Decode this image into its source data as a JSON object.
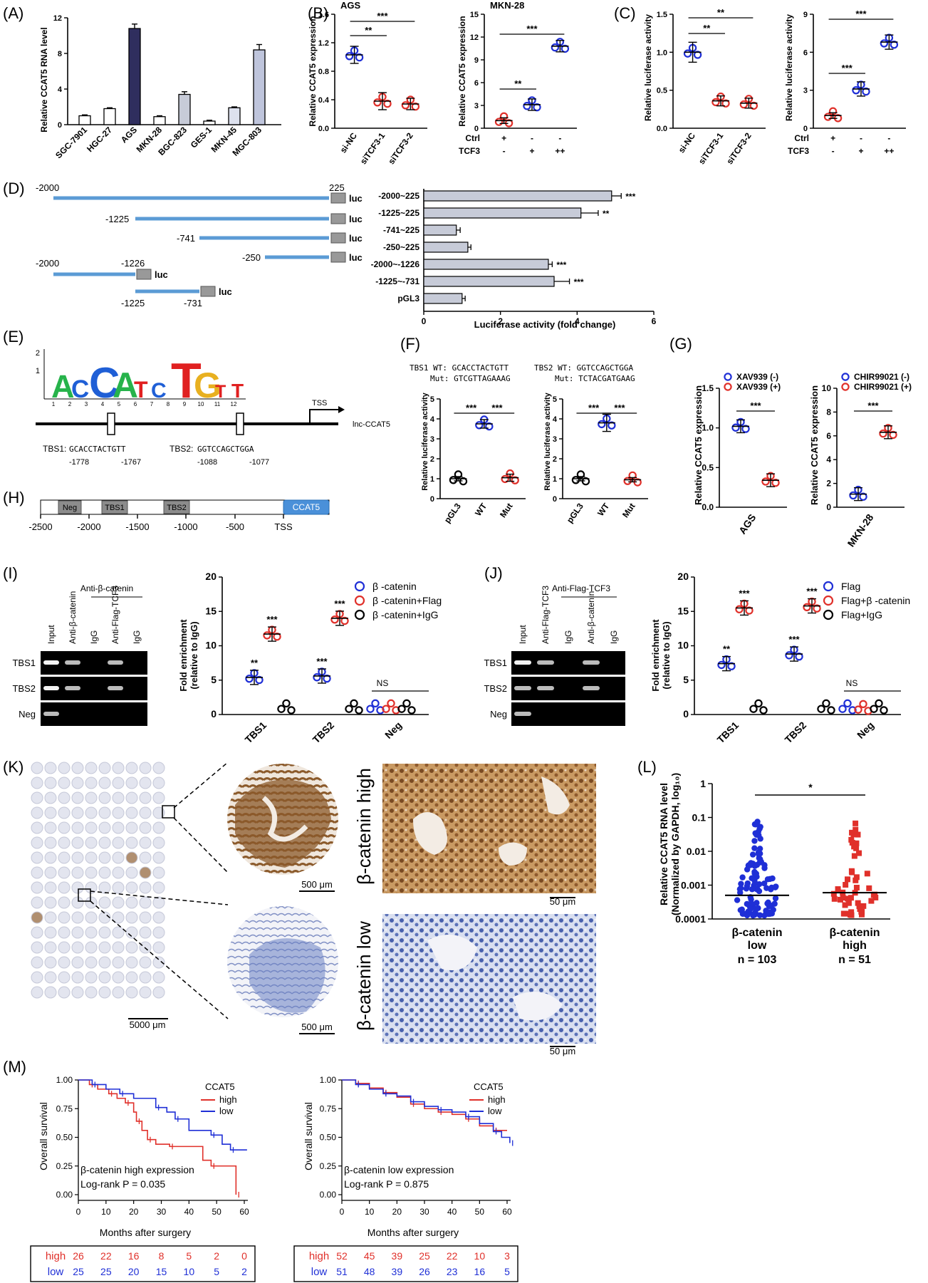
{
  "colors": {
    "blue": "#1f2fd6",
    "red": "#e0302a",
    "bar_gray": "#c7cbd8",
    "bar_dark": "#2f2e5e",
    "promoter_blue": "#5b9bd5",
    "ccat5_box": "#4a90d9",
    "ihc_brown": "#8b5a2b",
    "ihc_blue": "#3c5aa8"
  },
  "panels": {
    "A": {
      "label": "(A)",
      "ylabel": "Relative CCAT5 RNA level"
    },
    "B": {
      "label": "(B)",
      "ylabel": "Relative CCAT5 expression"
    },
    "C": {
      "label": "(C)",
      "ylabel": "Relative luciferase activity"
    },
    "D": {
      "label": "(D)",
      "xlabel": "Luciferase activity (fold change)",
      "luc": "luc"
    },
    "E": {
      "label": "(E)",
      "tss": "TSS",
      "gene": "lnc-CCAT5",
      "tbs1": "TBS1:",
      "tbs1_seq": "GCACCTACTGTT",
      "tbs1_start": "-1778",
      "tbs1_end": "-1767",
      "tbs2": "TBS2:",
      "tbs2_seq": "GGTCCAGCTGGA",
      "tbs2_start": "-1088",
      "tbs2_end": "-1077",
      "logo_letters": [
        "A",
        "C",
        "C",
        "A",
        "T",
        "C",
        "T",
        "G",
        "T",
        "T"
      ]
    },
    "F": {
      "label": "(F)",
      "ylabel": "Relative luciferase activity",
      "tbs1_wt": "TBS1 WT:  GCACCTACTGTT",
      "tbs1_mut": "Mut:  GTCGTTAGAAAG",
      "tbs2_wt": "TBS2 WT:  GGTCCAGCTGGA",
      "tbs2_mut": "Mut:  TCTACGATGAAG"
    },
    "G": {
      "label": "(G)",
      "ylabel": "Relative CCAT5 expression"
    },
    "H": {
      "label": "(H)",
      "boxes": [
        "Neg",
        "TBS1",
        "TBS2",
        "CCAT5"
      ],
      "ticks": [
        "-2500",
        "-2000",
        "-1500",
        "-1000",
        "-500",
        "TSS"
      ]
    },
    "I": {
      "label": "(I)",
      "header": "Anti-β-catenin",
      "lanes": [
        "Input",
        "Anti-β-catenin",
        "IgG",
        "Anti-Flag-TCF3",
        "IgG"
      ],
      "rows": [
        "TBS1",
        "TBS2",
        "Neg"
      ],
      "ylabel1": "Fold enrichment",
      "ylabel2": "(relative to IgG)",
      "ns": "NS"
    },
    "J": {
      "label": "(J)",
      "header": "Anti-Flag-TCF3",
      "lanes": [
        "Input",
        "Anti-Flag-TCF3",
        "IgG",
        "Anti-β-catenin",
        "IgG"
      ],
      "rows": [
        "TBS1",
        "TBS2",
        "Neg"
      ],
      "ylabel1": "Fold enrichment",
      "ylabel2": "(relative to IgG)",
      "ns": "NS"
    },
    "K": {
      "label": "(K)",
      "high": "β-catenin high",
      "low": "β-catenin low",
      "scale_5000": "5000 μm",
      "scale_500a": "500 μm",
      "scale_500b": "500 μm",
      "scale_50a": "50 μm",
      "scale_50b": "50 μm"
    },
    "L": {
      "label": "(L)",
      "ylabel1": "Relative CCAT5 RNA level",
      "ylabel2": "(Normalized by GAPDH, log₁₀)",
      "sig": "*"
    },
    "M": {
      "label": "(M)",
      "xlabel": "Months after surgery",
      "ylabel": "Overall survival"
    }
  },
  "chart_data": [
    {
      "id": "A",
      "type": "bar",
      "categories": [
        "SGC-7901",
        "HGC-27",
        "AGS",
        "MKN-28",
        "BGC-823",
        "GES-1",
        "MKN-45",
        "MGC-803"
      ],
      "values": [
        1.0,
        1.8,
        10.8,
        0.9,
        3.4,
        0.4,
        1.9,
        8.4
      ],
      "errors": [
        0.1,
        0.1,
        0.5,
        0.1,
        0.3,
        0.1,
        0.1,
        0.6
      ],
      "ylim": [
        0,
        12
      ],
      "yticks": [
        0,
        4,
        8,
        12
      ]
    },
    {
      "id": "B1",
      "type": "scatter",
      "title": "AGS",
      "categories": [
        "si-NC",
        "siTCF3-1",
        "siTCF3-2"
      ],
      "means": [
        1.03,
        0.38,
        0.34
      ],
      "ylim": [
        0,
        1.6
      ],
      "yticks": [
        "0.0",
        "0.4",
        "0.8",
        "1.2",
        "1.6"
      ],
      "sig": [
        {
          "from": 0,
          "to": 1,
          "text": "**"
        },
        {
          "from": 0,
          "to": 2,
          "text": "***"
        }
      ]
    },
    {
      "id": "B2",
      "type": "scatter",
      "title": "MKN-28",
      "categories": [
        "1",
        "2",
        "3"
      ],
      "means": [
        1.0,
        3.1,
        10.8
      ],
      "ylim": [
        0,
        15
      ],
      "yticks": [
        "0",
        "3",
        "6",
        "9",
        "12",
        "15"
      ],
      "conditions": {
        "Ctrl": [
          "+",
          "-",
          "-"
        ],
        "TCF3": [
          "-",
          "+",
          "++"
        ]
      },
      "sig": [
        {
          "from": 0,
          "to": 1,
          "text": "**"
        },
        {
          "from": 0,
          "to": 2,
          "text": "***"
        }
      ]
    },
    {
      "id": "C1",
      "type": "scatter",
      "categories": [
        "si-NC",
        "siTCF3-1",
        "siTCF3-2"
      ],
      "means": [
        1.0,
        0.36,
        0.33
      ],
      "ylim": [
        0,
        1.5
      ],
      "yticks": [
        "0.0",
        "0.5",
        "1.0",
        "1.5"
      ],
      "sig": [
        {
          "from": 0,
          "to": 1,
          "text": "**"
        },
        {
          "from": 0,
          "to": 2,
          "text": "**"
        }
      ]
    },
    {
      "id": "C2",
      "type": "scatter",
      "categories": [
        "1",
        "2",
        "3"
      ],
      "means": [
        1.0,
        3.1,
        6.8
      ],
      "ylim": [
        0,
        9
      ],
      "yticks": [
        "0",
        "3",
        "6",
        "9"
      ],
      "conditions": {
        "Ctrl": [
          "+",
          "-",
          "-"
        ],
        "TCF3": [
          "-",
          "+",
          "++"
        ]
      },
      "sig": [
        {
          "from": 0,
          "to": 1,
          "text": "***"
        },
        {
          "from": 0,
          "to": 2,
          "text": "***"
        }
      ]
    },
    {
      "id": "D",
      "type": "bar",
      "orientation": "horizontal",
      "categories": [
        "-2000~225",
        "-1225~225",
        "-741~225",
        "-250~225",
        "-2000~-1226",
        "-1225~-731",
        "pGL3"
      ],
      "values": [
        4.9,
        4.1,
        0.85,
        1.15,
        3.25,
        3.4,
        1.0
      ],
      "errors": [
        0.25,
        0.45,
        0.1,
        0.08,
        0.1,
        0.4,
        0.08
      ],
      "sig": [
        "***",
        "**",
        "",
        "",
        "***",
        "***",
        ""
      ],
      "xlim": [
        0,
        6
      ],
      "xticks": [
        "0",
        "2",
        "4",
        "6"
      ],
      "constructs": [
        {
          "start": "-2000",
          "end": "225"
        },
        {
          "start": "-1225"
        },
        {
          "start": "-741"
        },
        {
          "start": "-250"
        },
        {
          "start": "-2000",
          "end": "-1226"
        },
        {
          "start": "-1225",
          "end": "-731"
        }
      ]
    },
    {
      "id": "F1",
      "type": "scatter",
      "categories": [
        "pGL3",
        "WT",
        "Mut"
      ],
      "means": [
        1.0,
        3.75,
        1.05
      ],
      "ylim": [
        0,
        5
      ],
      "yticks": [
        "0",
        "1",
        "2",
        "3",
        "4",
        "5"
      ],
      "sig": [
        {
          "from": 0,
          "to": 1,
          "text": "***"
        },
        {
          "from": 1,
          "to": 2,
          "text": "***"
        }
      ]
    },
    {
      "id": "F2",
      "type": "scatter",
      "categories": [
        "pGL3",
        "WT",
        "Mut"
      ],
      "means": [
        1.0,
        3.8,
        0.95
      ],
      "ylim": [
        0,
        5
      ],
      "yticks": [
        "0",
        "1",
        "2",
        "3",
        "4",
        "5"
      ],
      "sig": [
        {
          "from": 0,
          "to": 1,
          "text": "***"
        },
        {
          "from": 1,
          "to": 2,
          "text": "***"
        }
      ]
    },
    {
      "id": "G1",
      "type": "scatter",
      "xlabel": "AGS",
      "series": [
        {
          "name": "XAV939 (-)",
          "color": "blue",
          "mean": 1.02
        },
        {
          "name": "XAV939 (+)",
          "color": "red",
          "mean": 0.34
        }
      ],
      "ylim": [
        0,
        1.5
      ],
      "yticks": [
        "0.0",
        "0.5",
        "1.0",
        "1.5"
      ],
      "sig": "***"
    },
    {
      "id": "G2",
      "type": "scatter",
      "xlabel": "MKN-28",
      "series": [
        {
          "name": "CHIR99021 (-)",
          "color": "blue",
          "mean": 1.1
        },
        {
          "name": "CHIR99021 (+)",
          "color": "red",
          "mean": 6.3
        }
      ],
      "ylim": [
        0,
        10
      ],
      "yticks": [
        "0",
        "2",
        "4",
        "6",
        "8",
        "10"
      ],
      "sig": "***"
    },
    {
      "id": "I",
      "type": "scatter",
      "categories": [
        "TBS1",
        "TBS2",
        "Neg"
      ],
      "series": [
        {
          "name": "β -catenin",
          "color": "blue",
          "means": [
            5.4,
            5.6,
            1.0
          ]
        },
        {
          "name": "β -catenin+Flag",
          "color": "red",
          "means": [
            11.7,
            14.0,
            1.0
          ]
        },
        {
          "name": "β -catenin+IgG",
          "color": "black",
          "means": [
            1.0,
            1.0,
            1.0
          ]
        }
      ],
      "labels": [
        [
          "**",
          "***"
        ],
        [
          "***",
          "***"
        ],
        [
          "",
          ""
        ]
      ],
      "ylim": [
        0,
        20
      ],
      "yticks": [
        "0",
        "5",
        "10",
        "15",
        "20"
      ],
      "legend": "top-right"
    },
    {
      "id": "J",
      "type": "scatter",
      "categories": [
        "TBS1",
        "TBS2",
        "Neg"
      ],
      "series": [
        {
          "name": "Flag",
          "color": "blue",
          "means": [
            7.4,
            8.8,
            1.0
          ]
        },
        {
          "name": "Flag+β -catenin",
          "color": "red",
          "means": [
            15.5,
            15.8,
            0.9
          ]
        },
        {
          "name": "Flag+IgG",
          "color": "black",
          "means": [
            1.0,
            1.0,
            1.0
          ]
        }
      ],
      "labels": [
        [
          "**",
          "***"
        ],
        [
          "***",
          "***"
        ],
        [
          "",
          ""
        ]
      ],
      "ylim": [
        0,
        20
      ],
      "yticks": [
        "0",
        "5",
        "10",
        "15",
        "20"
      ],
      "legend": "top-right"
    },
    {
      "id": "L",
      "type": "scatter",
      "yscale": "log",
      "categories": [
        "β-catenin low",
        "β-catenin high"
      ],
      "n": [
        "n = 103",
        "n = 51"
      ],
      "medians": [
        0.0005,
        0.0006
      ],
      "ylim": [
        0.0001,
        1
      ],
      "yticks": [
        "0.0001",
        "0.001",
        "0.01",
        "0.1",
        "1"
      ],
      "counts": [
        103,
        51
      ]
    },
    {
      "id": "M1",
      "type": "line",
      "title": "β-catenin high expression",
      "stat": "Log-rank P = 0.035",
      "legend_title": "CCAT5",
      "x": [
        0,
        10,
        20,
        30,
        40,
        50,
        60
      ],
      "series": [
        {
          "name": "high",
          "color": "red",
          "steps": [
            [
              0,
              1.0
            ],
            [
              4,
              0.96
            ],
            [
              7,
              0.92
            ],
            [
              11,
              0.88
            ],
            [
              14,
              0.84
            ],
            [
              17,
              0.8
            ],
            [
              20,
              0.72
            ],
            [
              21,
              0.64
            ],
            [
              23,
              0.56
            ],
            [
              25,
              0.48
            ],
            [
              28,
              0.44
            ],
            [
              33,
              0.42
            ],
            [
              45,
              0.3
            ],
            [
              48,
              0.25
            ],
            [
              56,
              0.25
            ],
            [
              57,
              0.0
            ]
          ]
        },
        {
          "name": "low",
          "color": "blue",
          "steps": [
            [
              0,
              1.0
            ],
            [
              5,
              0.96
            ],
            [
              10,
              0.92
            ],
            [
              15,
              0.88
            ],
            [
              20,
              0.84
            ],
            [
              28,
              0.76
            ],
            [
              32,
              0.72
            ],
            [
              35,
              0.66
            ],
            [
              40,
              0.56
            ],
            [
              48,
              0.52
            ],
            [
              52,
              0.44
            ],
            [
              55,
              0.39
            ],
            [
              61,
              0.39
            ]
          ]
        }
      ],
      "risk_table": {
        "high": [
          "26",
          "22",
          "16",
          "8",
          "5",
          "2",
          "0"
        ],
        "low": [
          "25",
          "25",
          "20",
          "15",
          "10",
          "5",
          "2"
        ]
      },
      "yticks": [
        "0.00",
        "0.25",
        "0.50",
        "0.75",
        "1.00"
      ],
      "xticks": [
        "0",
        "10",
        "20",
        "30",
        "40",
        "50",
        "60"
      ]
    },
    {
      "id": "M2",
      "type": "line",
      "title": "β-catenin low expression",
      "stat": "Log-rank P = 0.875",
      "legend_title": "CCAT5",
      "x": [
        0,
        10,
        20,
        30,
        40,
        50,
        60
      ],
      "series": [
        {
          "name": "high",
          "color": "red",
          "steps": [
            [
              0,
              1.0
            ],
            [
              5,
              0.97
            ],
            [
              10,
              0.93
            ],
            [
              15,
              0.89
            ],
            [
              20,
              0.85
            ],
            [
              25,
              0.79
            ],
            [
              30,
              0.75
            ],
            [
              35,
              0.72
            ],
            [
              40,
              0.7
            ],
            [
              45,
              0.66
            ],
            [
              50,
              0.6
            ],
            [
              55,
              0.56
            ],
            [
              60,
              0.56
            ]
          ]
        },
        {
          "name": "low",
          "color": "blue",
          "steps": [
            [
              0,
              1.0
            ],
            [
              5,
              0.96
            ],
            [
              10,
              0.92
            ],
            [
              15,
              0.88
            ],
            [
              20,
              0.86
            ],
            [
              25,
              0.81
            ],
            [
              30,
              0.77
            ],
            [
              35,
              0.74
            ],
            [
              40,
              0.72
            ],
            [
              45,
              0.68
            ],
            [
              50,
              0.62
            ],
            [
              55,
              0.55
            ],
            [
              58,
              0.5
            ],
            [
              61,
              0.45
            ]
          ]
        }
      ],
      "risk_table": {
        "high": [
          "52",
          "45",
          "39",
          "25",
          "22",
          "10",
          "3"
        ],
        "low": [
          "51",
          "48",
          "39",
          "26",
          "23",
          "16",
          "5"
        ]
      },
      "yticks": [
        "0.00",
        "0.25",
        "0.50",
        "0.75",
        "1.00"
      ],
      "xticks": [
        "0",
        "10",
        "20",
        "30",
        "40",
        "50",
        "60"
      ]
    }
  ]
}
